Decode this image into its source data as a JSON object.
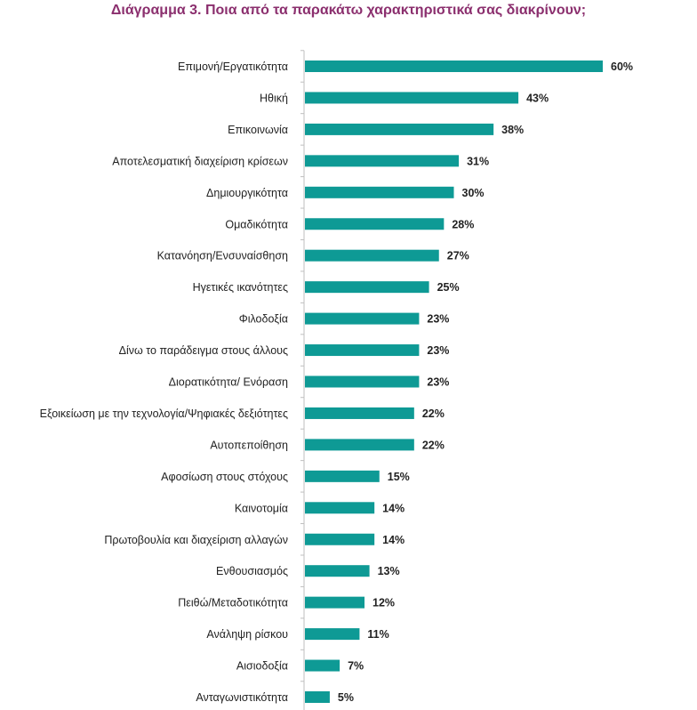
{
  "chart_data": {
    "type": "bar",
    "orientation": "horizontal",
    "title": "Διάγραμμα 3. Ποια από τα παρακάτω χαρακτηριστικά σας διακρίνουν;",
    "categories": [
      "Επιμονή/Εργατικότητα",
      "Ηθική",
      "Επικοινωνία",
      "Αποτελεσματική διαχείριση κρίσεων",
      "Δημιουργικότητα",
      "Ομαδικότητα",
      "Κατανόηση/Ενσυναίσθηση",
      "Ηγετικές ικανότητες",
      "Φιλοδοξία",
      "Δίνω το παράδειγμα στους άλλους",
      "Διορατικότητα/ Ενόραση",
      "Εξοικείωση με την τεχνολογία/Ψηφιακές δεξιότητες",
      "Αυτοπεποίθηση",
      "Αφοσίωση στους στόχους",
      "Καινοτομία",
      "Πρωτοβουλία και διαχείριση αλλαγών",
      "Ενθουσιασμός",
      "Πειθώ/Μεταδοτικότητα",
      "Ανάληψη ρίσκου",
      "Αισιοδοξία",
      "Ανταγωνιστικότητα"
    ],
    "values": [
      60,
      43,
      38,
      31,
      30,
      28,
      27,
      25,
      23,
      23,
      23,
      22,
      22,
      15,
      14,
      14,
      13,
      12,
      11,
      7,
      5
    ],
    "value_labels": [
      "60%",
      "43%",
      "38%",
      "31%",
      "30%",
      "28%",
      "27%",
      "25%",
      "23%",
      "23%",
      "23%",
      "22%",
      "22%",
      "15%",
      "14%",
      "14%",
      "13%",
      "12%",
      "11%",
      "7%",
      "5%"
    ],
    "unit": "%",
    "xlim": [
      0,
      60
    ],
    "grid": false,
    "legend": "none",
    "colors": {
      "bar": "#0e9a95",
      "axis": "#bfbfbf",
      "title": "#8b2f6e",
      "text": "#222222"
    }
  }
}
